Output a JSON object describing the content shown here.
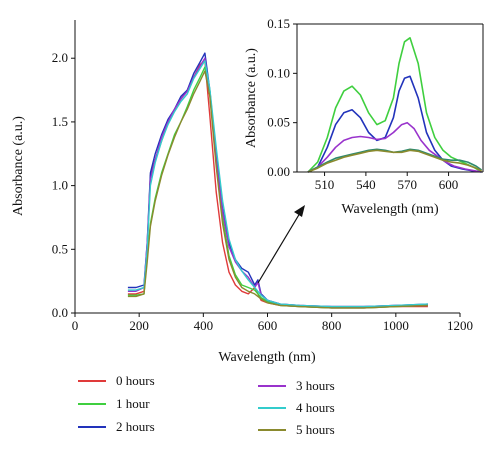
{
  "chart_data": [
    {
      "type": "line",
      "xlabel": "Wavelength (nm)",
      "ylabel": "Absorbance (a.u.)",
      "xlim": [
        0,
        1200
      ],
      "ylim": [
        0,
        2.3
      ],
      "x_ticks": [
        "0",
        "200",
        "400",
        "600",
        "800",
        "1000",
        "1200"
      ],
      "y_ticks": [
        "0.0",
        "0.5",
        "1.0",
        "1.5",
        "2.0"
      ],
      "grid": false,
      "legend_position": "bottom",
      "series": [
        {
          "name": "0 hours",
          "color": "#e03a3a",
          "x": [
            165,
            190,
            215,
            225,
            235,
            250,
            270,
            290,
            310,
            330,
            350,
            370,
            390,
            405,
            420,
            440,
            460,
            480,
            500,
            520,
            540,
            560,
            580,
            600,
            640,
            700,
            800,
            900,
            1000,
            1100
          ],
          "y": [
            0.15,
            0.15,
            0.17,
            0.5,
            1.08,
            1.2,
            1.35,
            1.5,
            1.6,
            1.68,
            1.75,
            1.85,
            1.95,
            1.98,
            1.55,
            0.95,
            0.55,
            0.32,
            0.22,
            0.17,
            0.15,
            0.2,
            0.1,
            0.08,
            0.06,
            0.05,
            0.04,
            0.04,
            0.05,
            0.05
          ]
        },
        {
          "name": "1 hour",
          "color": "#3fcf3f",
          "x": [
            165,
            190,
            215,
            225,
            235,
            250,
            270,
            290,
            310,
            330,
            350,
            370,
            390,
            405,
            420,
            440,
            460,
            480,
            500,
            520,
            540,
            560,
            580,
            600,
            640,
            700,
            800,
            900,
            1000,
            1100
          ],
          "y": [
            0.14,
            0.14,
            0.15,
            0.45,
            0.7,
            0.9,
            1.1,
            1.25,
            1.4,
            1.5,
            1.62,
            1.75,
            1.85,
            1.93,
            1.75,
            1.2,
            0.75,
            0.45,
            0.3,
            0.22,
            0.2,
            0.18,
            0.12,
            0.09,
            0.06,
            0.05,
            0.04,
            0.04,
            0.05,
            0.06
          ]
        },
        {
          "name": "2 hours",
          "color": "#2233bb",
          "x": [
            165,
            190,
            215,
            225,
            235,
            250,
            270,
            290,
            310,
            330,
            350,
            370,
            390,
            405,
            420,
            440,
            460,
            480,
            500,
            520,
            540,
            560,
            570,
            580,
            600,
            640,
            700,
            800,
            900,
            1000,
            1100
          ],
          "y": [
            0.2,
            0.2,
            0.22,
            0.55,
            1.1,
            1.25,
            1.4,
            1.52,
            1.6,
            1.7,
            1.75,
            1.88,
            1.97,
            2.04,
            1.75,
            1.25,
            0.82,
            0.55,
            0.42,
            0.35,
            0.32,
            0.22,
            0.26,
            0.15,
            0.1,
            0.07,
            0.06,
            0.05,
            0.05,
            0.06,
            0.07
          ]
        },
        {
          "name": "3 hours",
          "color": "#9933cc",
          "x": [
            165,
            190,
            215,
            225,
            235,
            250,
            270,
            290,
            310,
            330,
            350,
            370,
            390,
            405,
            420,
            440,
            460,
            480,
            500,
            520,
            540,
            560,
            570,
            580,
            600,
            640,
            700,
            800,
            900,
            1000,
            1100
          ],
          "y": [
            0.17,
            0.17,
            0.2,
            0.55,
            1.05,
            1.2,
            1.38,
            1.5,
            1.6,
            1.68,
            1.74,
            1.85,
            1.94,
            2.0,
            1.72,
            1.2,
            0.8,
            0.52,
            0.4,
            0.33,
            0.28,
            0.2,
            0.24,
            0.14,
            0.1,
            0.07,
            0.06,
            0.05,
            0.05,
            0.06,
            0.06
          ]
        },
        {
          "name": "4 hours",
          "color": "#33cccc",
          "x": [
            165,
            190,
            215,
            225,
            235,
            250,
            270,
            290,
            310,
            330,
            350,
            370,
            390,
            405,
            420,
            440,
            460,
            480,
            500,
            520,
            540,
            560,
            580,
            600,
            640,
            700,
            800,
            900,
            1000,
            1100
          ],
          "y": [
            0.18,
            0.18,
            0.2,
            0.5,
            1.0,
            1.18,
            1.35,
            1.48,
            1.58,
            1.66,
            1.72,
            1.84,
            1.92,
            1.98,
            1.76,
            1.3,
            0.88,
            0.58,
            0.42,
            0.33,
            0.26,
            0.2,
            0.14,
            0.1,
            0.07,
            0.06,
            0.05,
            0.05,
            0.06,
            0.07
          ]
        },
        {
          "name": "5 hours",
          "color": "#8a8a2e",
          "x": [
            165,
            190,
            215,
            225,
            235,
            250,
            270,
            290,
            310,
            330,
            350,
            370,
            390,
            405,
            420,
            440,
            460,
            480,
            500,
            520,
            540,
            560,
            580,
            600,
            640,
            700,
            800,
            900,
            1000,
            1100
          ],
          "y": [
            0.13,
            0.13,
            0.15,
            0.4,
            0.68,
            0.88,
            1.08,
            1.24,
            1.38,
            1.5,
            1.6,
            1.72,
            1.82,
            1.9,
            1.7,
            1.15,
            0.7,
            0.42,
            0.28,
            0.2,
            0.17,
            0.15,
            0.11,
            0.08,
            0.06,
            0.05,
            0.04,
            0.04,
            0.05,
            0.06
          ]
        }
      ]
    },
    {
      "type": "line",
      "xlabel": "Wavelength (nm)",
      "ylabel": "Absorbance (a.u.)",
      "xlim": [
        490,
        625
      ],
      "ylim": [
        0,
        0.15
      ],
      "x_ticks": [
        "510",
        "540",
        "570",
        "600"
      ],
      "y_ticks": [
        "0.00",
        "0.05",
        "0.10",
        "0.15"
      ],
      "grid": false,
      "series": [
        {
          "color": "#3fcf3f",
          "x": [
            498,
            505,
            512,
            518,
            524,
            530,
            536,
            542,
            548,
            554,
            560,
            564,
            568,
            572,
            578,
            584,
            590,
            596,
            602,
            610,
            618,
            624
          ],
          "y": [
            0.0,
            0.01,
            0.035,
            0.065,
            0.082,
            0.087,
            0.078,
            0.06,
            0.048,
            0.052,
            0.075,
            0.11,
            0.132,
            0.136,
            0.11,
            0.06,
            0.035,
            0.022,
            0.015,
            0.01,
            0.005,
            0.0
          ]
        },
        {
          "color": "#2233bb",
          "x": [
            498,
            505,
            512,
            518,
            524,
            530,
            536,
            542,
            548,
            554,
            560,
            564,
            568,
            572,
            578,
            584,
            590,
            596,
            602,
            610,
            618,
            624
          ],
          "y": [
            0.0,
            0.005,
            0.025,
            0.048,
            0.06,
            0.063,
            0.055,
            0.04,
            0.032,
            0.035,
            0.055,
            0.082,
            0.095,
            0.097,
            0.075,
            0.04,
            0.022,
            0.012,
            0.006,
            0.003,
            0.001,
            0.0
          ]
        },
        {
          "color": "#9933cc",
          "x": [
            498,
            505,
            512,
            518,
            524,
            530,
            536,
            542,
            548,
            554,
            560,
            566,
            570,
            575,
            580,
            586,
            592,
            598,
            604,
            612,
            620,
            624
          ],
          "y": [
            0.0,
            0.005,
            0.015,
            0.025,
            0.032,
            0.035,
            0.036,
            0.035,
            0.033,
            0.034,
            0.04,
            0.048,
            0.05,
            0.044,
            0.032,
            0.022,
            0.016,
            0.01,
            0.006,
            0.003,
            0.001,
            0.0
          ]
        },
        {
          "color": "#2e8a6e",
          "x": [
            498,
            505,
            512,
            518,
            524,
            530,
            536,
            542,
            548,
            554,
            560,
            566,
            572,
            578,
            584,
            590,
            596,
            602,
            608,
            614,
            620,
            624
          ],
          "y": [
            0.0,
            0.005,
            0.01,
            0.014,
            0.016,
            0.018,
            0.02,
            0.022,
            0.023,
            0.022,
            0.02,
            0.021,
            0.023,
            0.022,
            0.019,
            0.016,
            0.013,
            0.012,
            0.012,
            0.01,
            0.006,
            0.002
          ]
        },
        {
          "color": "#8a8a2e",
          "x": [
            498,
            505,
            512,
            518,
            524,
            530,
            536,
            542,
            548,
            554,
            560,
            566,
            572,
            578,
            584,
            590,
            596,
            602,
            608,
            614,
            620,
            624
          ],
          "y": [
            0.0,
            0.004,
            0.009,
            0.012,
            0.015,
            0.017,
            0.019,
            0.021,
            0.022,
            0.021,
            0.02,
            0.02,
            0.022,
            0.021,
            0.018,
            0.015,
            0.012,
            0.01,
            0.009,
            0.007,
            0.004,
            0.001
          ]
        }
      ]
    }
  ]
}
